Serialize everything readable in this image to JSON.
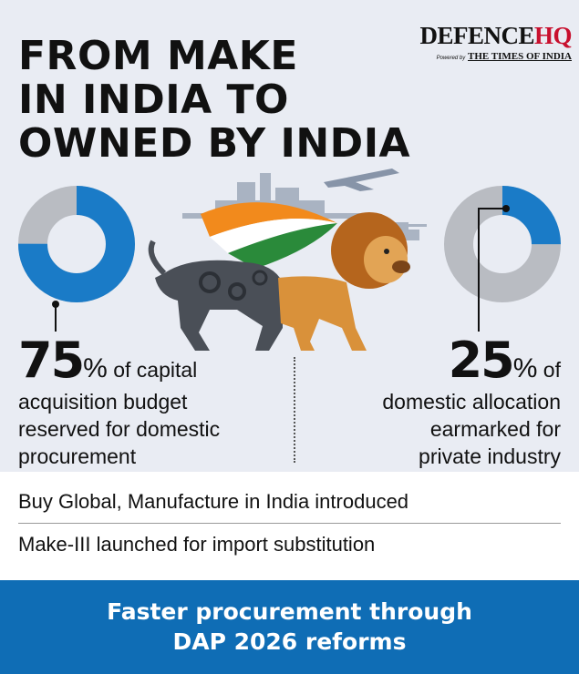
{
  "headline": {
    "line1": "FROM MAKE",
    "line2": "IN INDIA TO",
    "line3": "OWNED BY INDIA"
  },
  "logo": {
    "brand_main": "DEFENCE",
    "brand_hq": "HQ",
    "powered": "Powered by",
    "partner": "THE TIMES OF INDIA"
  },
  "stat_left": {
    "value": "75",
    "unit": "%",
    "text_1": " of capital",
    "text_2": "acquisition budget",
    "text_3": "reserved for domestic",
    "text_4": "procurement",
    "fraction": 0.75
  },
  "stat_right": {
    "value": "25",
    "unit": "%",
    "text_1": " of",
    "text_2": "domestic allocation",
    "text_3": "earmarked for",
    "text_4": "private industry",
    "fraction": 0.25
  },
  "list": {
    "item_1": "Buy Global, Manufacture in India introduced",
    "item_2": "Make-III launched for import substitution"
  },
  "footer": {
    "line1": "Faster procurement through",
    "line2": "DAP 2026 reforms"
  },
  "colors": {
    "accent_blue": "#0f6db5",
    "donut_blue": "#1a7bc7",
    "donut_grey": "#b9bcc2",
    "background": "#e9ecf3",
    "logo_red": "#c8102e",
    "saffron": "#f28a1c",
    "green": "#2a8a3a"
  },
  "icons": {
    "illustration": "mechanical-lion-with-flag-icon"
  }
}
